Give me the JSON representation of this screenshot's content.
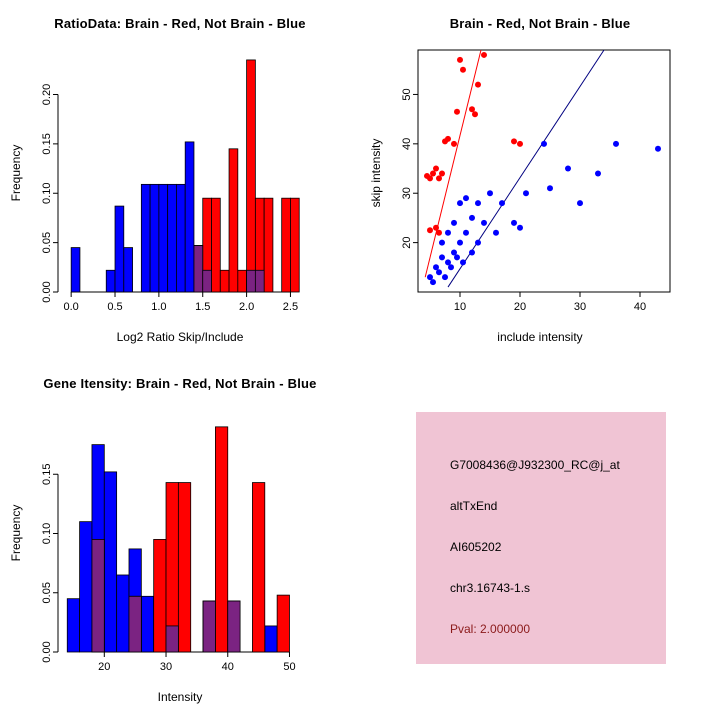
{
  "colors": {
    "brain_red": "#FF0000",
    "not_brain_blue": "#0000FF",
    "fit_line_blue": "#000080",
    "overlap_purple": "#7B2382",
    "panel_pink": "#F0C4D4",
    "pval_red": "#8B1A1A"
  },
  "chart_data": [
    {
      "id": "ratio_hist",
      "type": "bar",
      "title": "RatioData: Brain - Red, Not Brain - Blue",
      "xlabel": "Log2 Ratio Skip/Include",
      "ylabel": "Frequency",
      "xlim": [
        -0.15,
        2.7
      ],
      "ylim": [
        0,
        0.24
      ],
      "xticks": {
        "values": [
          0,
          0.5,
          1.0,
          1.5,
          2.0,
          2.5
        ],
        "labels": [
          "0.0",
          "0.5",
          "1.0",
          "1.5",
          "2.0",
          "2.5"
        ]
      },
      "yticks": {
        "values": [
          0,
          0.05,
          0.1,
          0.15,
          0.2
        ],
        "labels": [
          "0.00",
          "0.05",
          "0.10",
          "0.15",
          "0.20"
        ]
      },
      "bin_width": 0.1,
      "series": [
        {
          "name": "not-brain",
          "color": "#0000FF",
          "bars": [
            [
              0.0,
              0.045
            ],
            [
              0.4,
              0.022
            ],
            [
              0.5,
              0.087
            ],
            [
              0.6,
              0.045
            ],
            [
              0.8,
              0.109
            ],
            [
              0.9,
              0.109
            ],
            [
              1.0,
              0.109
            ],
            [
              1.1,
              0.109
            ],
            [
              1.2,
              0.109
            ],
            [
              1.3,
              0.152
            ],
            [
              1.4,
              0.047
            ],
            [
              1.5,
              0.022
            ],
            [
              2.0,
              0.022
            ],
            [
              2.1,
              0.022
            ]
          ]
        },
        {
          "name": "brain",
          "color": "#FF0000",
          "bars": [
            [
              1.4,
              0.047
            ],
            [
              1.5,
              0.095
            ],
            [
              1.6,
              0.095
            ],
            [
              1.7,
              0.022
            ],
            [
              1.8,
              0.145
            ],
            [
              1.9,
              0.022
            ],
            [
              2.0,
              0.235
            ],
            [
              2.1,
              0.095
            ],
            [
              2.2,
              0.095
            ],
            [
              2.4,
              0.095
            ],
            [
              2.5,
              0.095
            ]
          ]
        },
        {
          "name": "overlap",
          "color": "#7B2382",
          "bars": [
            [
              1.4,
              0.047
            ],
            [
              1.5,
              0.022
            ],
            [
              2.0,
              0.022
            ],
            [
              2.1,
              0.022
            ]
          ]
        }
      ]
    },
    {
      "id": "intensity_scatter",
      "type": "scatter",
      "title": "Brain - Red, Not Brain - Blue",
      "xlabel": "include intensity",
      "ylabel": "skip intensity",
      "xlim": [
        3,
        45
      ],
      "ylim": [
        10,
        59
      ],
      "xticks": {
        "values": [
          10,
          20,
          30,
          40
        ],
        "labels": [
          "10",
          "20",
          "30",
          "40"
        ]
      },
      "yticks": {
        "values": [
          20,
          30,
          40,
          50
        ],
        "labels": [
          "20",
          "30",
          "40",
          "50"
        ]
      },
      "series": [
        {
          "name": "brain",
          "color": "#FF0000",
          "points": [
            [
              4.5,
              33.5
            ],
            [
              5,
              33
            ],
            [
              5.5,
              34
            ],
            [
              6,
              35
            ],
            [
              6.5,
              33
            ],
            [
              7,
              34
            ],
            [
              7.5,
              40.5
            ],
            [
              8,
              41
            ],
            [
              9,
              40
            ],
            [
              9.5,
              46.5
            ],
            [
              10,
              57
            ],
            [
              10.5,
              55
            ],
            [
              12,
              47
            ],
            [
              12.5,
              46
            ],
            [
              13,
              52
            ],
            [
              14,
              58
            ],
            [
              19,
              40.5
            ],
            [
              20,
              40
            ],
            [
              5,
              22.5
            ],
            [
              6,
              23
            ],
            [
              6.5,
              22
            ]
          ]
        },
        {
          "name": "not-brain",
          "color": "#0000FF",
          "points": [
            [
              5,
              13
            ],
            [
              5.5,
              12
            ],
            [
              6,
              15
            ],
            [
              6.5,
              14
            ],
            [
              7,
              17
            ],
            [
              7,
              20
            ],
            [
              7.5,
              13
            ],
            [
              8,
              16
            ],
            [
              8,
              22
            ],
            [
              8.5,
              15
            ],
            [
              9,
              18
            ],
            [
              9,
              24
            ],
            [
              9.5,
              17
            ],
            [
              10,
              20
            ],
            [
              10,
              28
            ],
            [
              10.5,
              16
            ],
            [
              11,
              22
            ],
            [
              11,
              29
            ],
            [
              12,
              18
            ],
            [
              12,
              25
            ],
            [
              13,
              20
            ],
            [
              13,
              28
            ],
            [
              14,
              24
            ],
            [
              15,
              30
            ],
            [
              16,
              22
            ],
            [
              17,
              28
            ],
            [
              19,
              24
            ],
            [
              20,
              23
            ],
            [
              21,
              30
            ],
            [
              24,
              40
            ],
            [
              25,
              31
            ],
            [
              28,
              35
            ],
            [
              30,
              28
            ],
            [
              33,
              34
            ],
            [
              36,
              40
            ],
            [
              43,
              39
            ]
          ]
        }
      ],
      "lines": [
        {
          "name": "brain-fit",
          "color": "#FF0000",
          "from": [
            4.2,
            13
          ],
          "to": [
            13.5,
            59
          ]
        },
        {
          "name": "not-brain-fit",
          "color": "#000080",
          "from": [
            8,
            11
          ],
          "to": [
            34,
            59
          ]
        }
      ]
    },
    {
      "id": "gene_intensity_hist",
      "type": "bar",
      "title": "Gene Itensity: Brain - Red, Not Brain - Blue",
      "xlabel": "Intensity",
      "ylabel": "Frequency",
      "xlim": [
        12.5,
        53
      ],
      "ylim": [
        0,
        0.2
      ],
      "xticks": {
        "values": [
          20,
          30,
          40,
          50
        ],
        "labels": [
          "20",
          "30",
          "40",
          "50"
        ]
      },
      "yticks": {
        "values": [
          0,
          0.05,
          0.1,
          0.15
        ],
        "labels": [
          "0.00",
          "0.05",
          "0.10",
          "0.15"
        ]
      },
      "bin_width": 2,
      "series": [
        {
          "name": "not-brain",
          "color": "#0000FF",
          "bars": [
            [
              14,
              0.045
            ],
            [
              16,
              0.11
            ],
            [
              18,
              0.175
            ],
            [
              20,
              0.152
            ],
            [
              22,
              0.065
            ],
            [
              24,
              0.087
            ],
            [
              26,
              0.047
            ],
            [
              30,
              0.022
            ],
            [
              36,
              0.043
            ],
            [
              40,
              0.043
            ],
            [
              46,
              0.022
            ]
          ]
        },
        {
          "name": "brain",
          "color": "#FF0000",
          "bars": [
            [
              18,
              0.095
            ],
            [
              24,
              0.047
            ],
            [
              28,
              0.095
            ],
            [
              30,
              0.143
            ],
            [
              32,
              0.143
            ],
            [
              36,
              0.043
            ],
            [
              38,
              0.19
            ],
            [
              40,
              0.043
            ],
            [
              44,
              0.143
            ],
            [
              48,
              0.048
            ]
          ]
        },
        {
          "name": "overlap",
          "color": "#7B2382",
          "bars": [
            [
              18,
              0.095
            ],
            [
              24,
              0.047
            ],
            [
              30,
              0.022
            ],
            [
              36,
              0.043
            ],
            [
              40,
              0.043
            ]
          ]
        }
      ]
    }
  ],
  "info_panel": {
    "lines": [
      "G7008436@J932300_RC@j_at",
      "altTxEnd",
      "AI605202",
      "chr3.16743-1.s"
    ],
    "pval": "Pval: 2.000000"
  }
}
